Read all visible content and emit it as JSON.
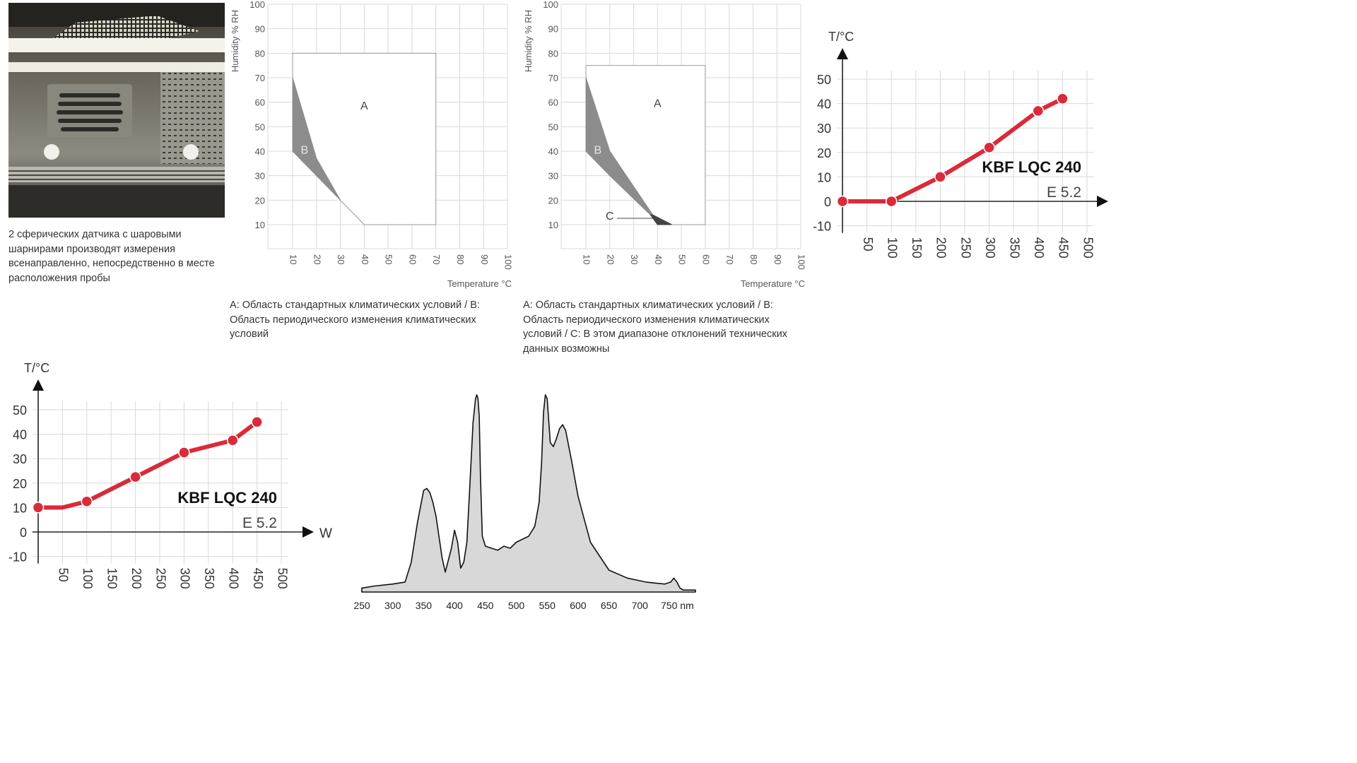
{
  "photo": {
    "caption": "2 сферических датчика с шаровыми шарнирами производят измерения всенаправленно, непосредственно в месте расположения пробы"
  },
  "colors": {
    "grid": "#d9d9d9",
    "region_a": "#ffffff",
    "region_b": "#8c8c8c",
    "region_c": "#444444",
    "line": "#d92b3a",
    "spectrum_fill": "#d8d8d8"
  },
  "chart_data": [
    {
      "id": "climate1",
      "type": "area",
      "xlabel": "Temperature °C",
      "ylabel": "Humidity % RH",
      "xlim": [
        10,
        100
      ],
      "ylim": [
        10,
        100
      ],
      "xticks": [
        "10",
        "20",
        "30",
        "40",
        "50",
        "60",
        "70",
        "80",
        "90",
        "100"
      ],
      "yticks": [
        "10",
        "20",
        "30",
        "40",
        "50",
        "60",
        "70",
        "80",
        "90",
        "100"
      ],
      "regions": [
        {
          "name": "A",
          "points": [
            [
              10,
              80
            ],
            [
              70,
              80
            ],
            [
              70,
              10
            ],
            [
              40,
              10
            ],
            [
              30,
              20
            ],
            [
              20,
              37
            ],
            [
              10,
              70
            ]
          ]
        },
        {
          "name": "B",
          "points": [
            [
              10,
              70
            ],
            [
              10,
              40
            ],
            [
              20,
              30
            ],
            [
              30,
              20
            ],
            [
              20,
              37
            ]
          ]
        }
      ],
      "caption": "A: Область стандартных климатических условий / B: Область периодического изменения климатических условий"
    },
    {
      "id": "climate2",
      "type": "area",
      "xlabel": "Temperature °C",
      "ylabel": "Humidity % RH",
      "xlim": [
        10,
        100
      ],
      "ylim": [
        10,
        100
      ],
      "xticks": [
        "10",
        "20",
        "30",
        "40",
        "50",
        "60",
        "70",
        "80",
        "90",
        "100"
      ],
      "yticks": [
        "10",
        "20",
        "30",
        "40",
        "50",
        "60",
        "70",
        "80",
        "90",
        "100"
      ],
      "regions": [
        {
          "name": "A",
          "points": [
            [
              10,
              75
            ],
            [
              60,
              75
            ],
            [
              60,
              10
            ],
            [
              46,
              10
            ],
            [
              38,
              14
            ],
            [
              20,
              40
            ],
            [
              10,
              70
            ]
          ]
        },
        {
          "name": "B",
          "points": [
            [
              10,
              70
            ],
            [
              10,
              40
            ],
            [
              20,
              30
            ],
            [
              37,
              14
            ],
            [
              38,
              14
            ],
            [
              20,
              40
            ]
          ]
        },
        {
          "name": "C",
          "points": [
            [
              37,
              14
            ],
            [
              38,
              14
            ],
            [
              46,
              10
            ],
            [
              40,
              10
            ]
          ]
        }
      ],
      "caption": "A: Область стандартных климатических условий / B: Область периодического изменения климатических условий / C: В этом диапазоне отклонений технических данных возможны"
    },
    {
      "id": "temp1",
      "type": "line",
      "ylabel": "T/°C",
      "xticks": [
        "50",
        "100",
        "150",
        "200",
        "250",
        "300",
        "350",
        "400",
        "450",
        "500"
      ],
      "yticks": [
        "-10",
        "0",
        "10",
        "20",
        "30",
        "40",
        "50"
      ],
      "xlim": [
        0,
        500
      ],
      "ylim": [
        -10,
        50
      ],
      "series": [
        {
          "name": "KBF LQC 240",
          "x": [
            0,
            100,
            200,
            300,
            400,
            450
          ],
          "y": [
            0,
            0,
            10,
            22,
            37,
            42
          ]
        }
      ],
      "label": "KBF LQC 240",
      "sublabel": "E 5.2"
    },
    {
      "id": "temp2",
      "type": "line",
      "ylabel": "T/°C",
      "xlabel": "W",
      "xticks": [
        "50",
        "100",
        "150",
        "200",
        "250",
        "300",
        "350",
        "400",
        "450",
        "500"
      ],
      "yticks": [
        "-10",
        "0",
        "10",
        "20",
        "30",
        "40",
        "50"
      ],
      "xlim": [
        0,
        500
      ],
      "ylim": [
        -10,
        50
      ],
      "series": [
        {
          "name": "KBF LQC 240",
          "x": [
            0,
            50,
            100,
            200,
            300,
            400,
            450
          ],
          "y": [
            10,
            10,
            12.5,
            22.5,
            32.5,
            37.5,
            45
          ]
        }
      ],
      "label": "KBF LQC 240",
      "sublabel": "E 5.2"
    },
    {
      "id": "spectrum",
      "type": "area",
      "xticks": [
        "250",
        "300",
        "350",
        "400",
        "450",
        "500",
        "550",
        "600",
        "650",
        "700",
        "750 nm"
      ],
      "xlim": [
        250,
        790
      ],
      "ylim": [
        0,
        100
      ],
      "x": [
        250,
        270,
        300,
        320,
        330,
        340,
        350,
        355,
        360,
        365,
        370,
        380,
        385,
        395,
        400,
        405,
        410,
        415,
        420,
        425,
        430,
        434,
        436,
        438,
        440,
        442,
        445,
        450,
        460,
        470,
        480,
        490,
        500,
        520,
        530,
        537,
        541,
        544,
        547,
        550,
        555,
        560,
        565,
        570,
        575,
        580,
        590,
        600,
        620,
        650,
        680,
        710,
        740,
        750,
        755,
        760,
        765,
        770,
        790
      ],
      "y": [
        2,
        3,
        4,
        5,
        15,
        35,
        51,
        52,
        50,
        45,
        38,
        17,
        10,
        22,
        31,
        25,
        12,
        15,
        25,
        55,
        85,
        97,
        99,
        97,
        88,
        58,
        28,
        23,
        22,
        21,
        23,
        22,
        25,
        28,
        33,
        45,
        65,
        90,
        99,
        97,
        75,
        73,
        77,
        82,
        84,
        81,
        65,
        48,
        25,
        11,
        7,
        5,
        4,
        5,
        7,
        5,
        2,
        1,
        1
      ]
    }
  ]
}
